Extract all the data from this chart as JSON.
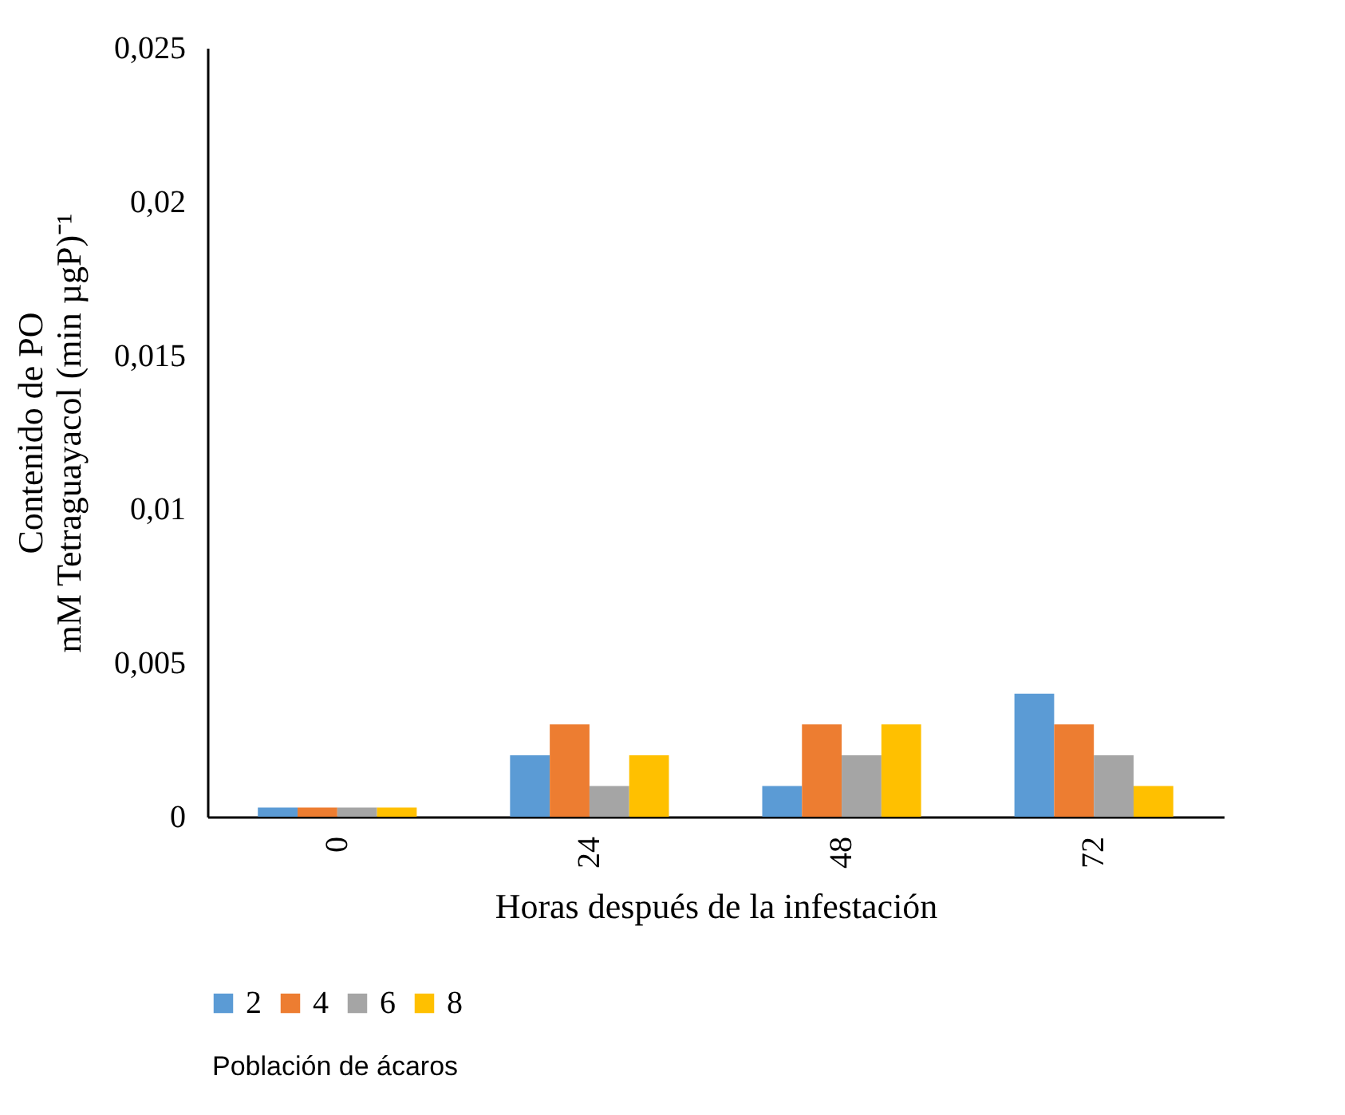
{
  "chart_data": {
    "type": "bar",
    "xlabel": "Horas después de la infestación",
    "ylabel": "Contenido de PO\nmM Tetraguayacol (min µgP)⁻¹",
    "legend_title": "Población de ácaros",
    "categories": [
      "0",
      "24",
      "48",
      "72"
    ],
    "series": [
      {
        "name": "2",
        "color": "#5b9bd5",
        "values": [
          0.0003,
          0.002,
          0.001,
          0.004
        ]
      },
      {
        "name": "4",
        "color": "#ed7d31",
        "values": [
          0.0003,
          0.003,
          0.003,
          0.003
        ]
      },
      {
        "name": "6",
        "color": "#a5a5a5",
        "values": [
          0.0003,
          0.001,
          0.002,
          0.002
        ]
      },
      {
        "name": "8",
        "color": "#ffc000",
        "values": [
          0.0003,
          0.002,
          0.003,
          0.001
        ]
      }
    ],
    "ylim": [
      0,
      0.025
    ],
    "yticks": [
      {
        "value": 0,
        "label": "0"
      },
      {
        "value": 0.005,
        "label": "0,005"
      },
      {
        "value": 0.01,
        "label": "0,01"
      },
      {
        "value": 0.015,
        "label": "0,015"
      },
      {
        "value": 0.02,
        "label": "0,02"
      },
      {
        "value": 0.025,
        "label": "0,025"
      }
    ],
    "grid": false,
    "legend": "bottom"
  }
}
